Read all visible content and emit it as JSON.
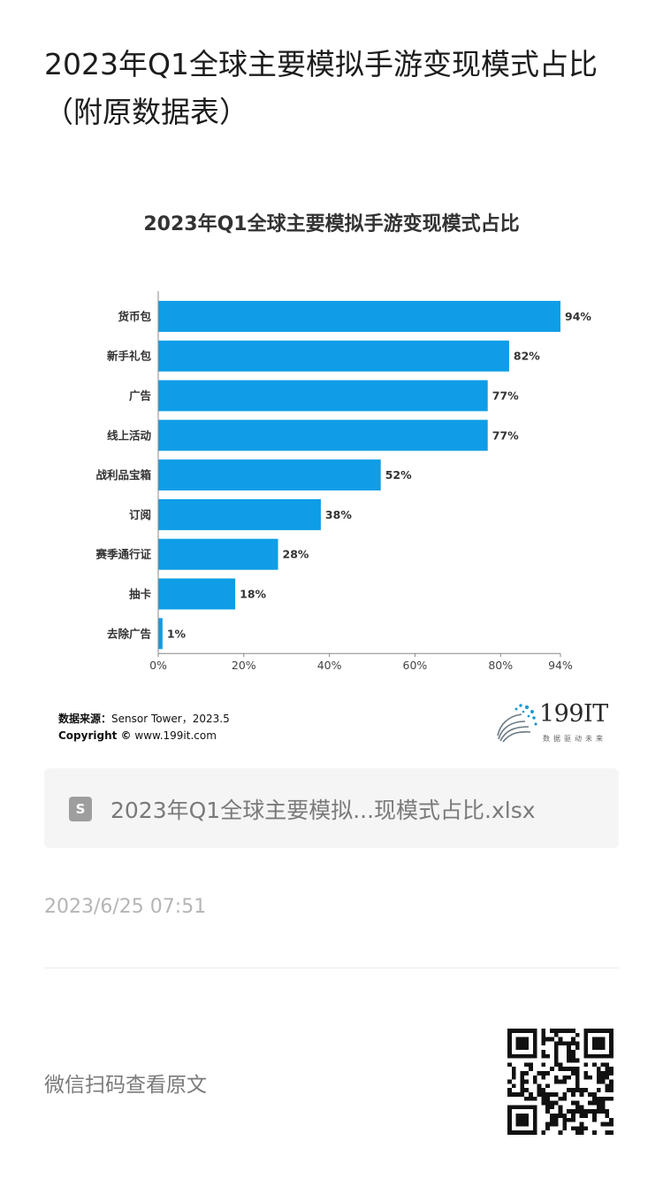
{
  "article": {
    "title": "2023年Q1全球主要模拟手游变现模式占比（附原数据表）"
  },
  "chart_data": {
    "type": "bar",
    "orientation": "horizontal",
    "title": "2023年Q1全球主要模拟手游变现模式占比",
    "categories": [
      "货币包",
      "新手礼包",
      "广告",
      "线上活动",
      "战利品宝箱",
      "订阅",
      "赛季通行证",
      "抽卡",
      "去除广告"
    ],
    "values": [
      94,
      82,
      77,
      77,
      52,
      38,
      28,
      18,
      1
    ],
    "value_labels": [
      "94%",
      "82%",
      "77%",
      "77%",
      "52%",
      "38%",
      "28%",
      "18%",
      "1%"
    ],
    "x_ticks": [
      "0%",
      "20%",
      "40%",
      "60%",
      "80%",
      "94%"
    ],
    "x_tick_values": [
      0,
      20,
      40,
      60,
      80,
      94
    ],
    "xlim": [
      0,
      94
    ],
    "bar_color": "#0e9de6",
    "grid": false
  },
  "footer": {
    "source_label": "数据来源：",
    "source_value": "Sensor Tower，2023.5",
    "copyright_label": "Copyright ©",
    "copyright_value": "www.199it.com",
    "logo_text": "199IT",
    "logo_tagline": "数据驱动未来"
  },
  "attachment": {
    "icon": "spreadsheet-icon",
    "icon_letter": "S",
    "filename": "2023年Q1全球主要模拟...现模式占比.xlsx"
  },
  "timestamp": "2023/6/25 07:51",
  "scan_prompt": "微信扫码查看原文",
  "colors": {
    "accent": "#0e9de6",
    "file_card_bg": "#f5f5f5"
  }
}
